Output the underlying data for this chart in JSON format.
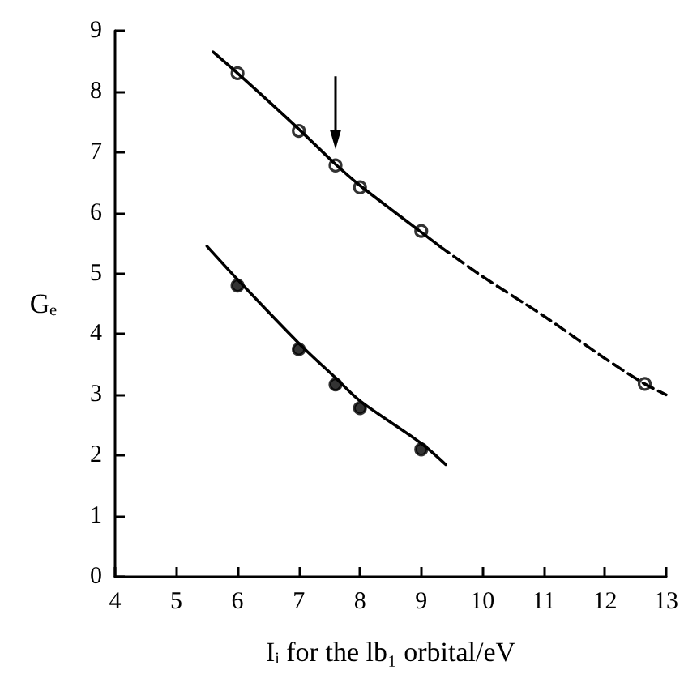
{
  "chart_data": {
    "type": "scatter",
    "xlabel": "Iᵢ for the lb₁ orbital/eV",
    "ylabel": "Gₑ",
    "xlim": [
      4,
      13
    ],
    "xticks": [
      4,
      5,
      6,
      7,
      8,
      9,
      10,
      11,
      12,
      13
    ],
    "ylim": [
      0,
      9
    ],
    "yticks": [
      0,
      1,
      2,
      3,
      4,
      5,
      6,
      7,
      8,
      9
    ],
    "grid": false,
    "series": [
      {
        "type": "scatter",
        "marker": "circle",
        "color": "#ffffff",
        "x": [
          6,
          7,
          7.6,
          8,
          9,
          12.65
        ],
        "values": [
          8.3,
          7.35,
          6.78,
          6.42,
          5.7,
          3.18
        ]
      },
      {
        "type": "scatter",
        "marker": "circle",
        "color": "#000000",
        "x": [
          6,
          7,
          7.6,
          8,
          9
        ],
        "values": [
          4.8,
          3.75,
          3.17,
          2.78,
          2.1
        ]
      },
      {
        "type": "line",
        "line_style": "solid",
        "marker": "none",
        "color": "#000000",
        "x": [
          5.6,
          6,
          7,
          7.6,
          8,
          9,
          9.3
        ],
        "values": [
          8.65,
          8.3,
          7.38,
          6.8,
          6.45,
          5.68,
          5.45
        ]
      },
      {
        "type": "line",
        "line_style": "dashed",
        "marker": "none",
        "color": "#000000",
        "x": [
          9.3,
          10,
          11,
          12,
          12.65,
          13
        ],
        "values": [
          5.45,
          4.95,
          4.3,
          3.6,
          3.18,
          3.0
        ]
      },
      {
        "type": "line",
        "line_style": "solid",
        "marker": "none",
        "color": "#000000",
        "x": [
          5.5,
          6,
          7,
          7.6,
          8,
          9,
          9.4
        ],
        "values": [
          5.45,
          4.9,
          3.85,
          3.28,
          2.9,
          2.2,
          1.85
        ]
      }
    ]
  }
}
